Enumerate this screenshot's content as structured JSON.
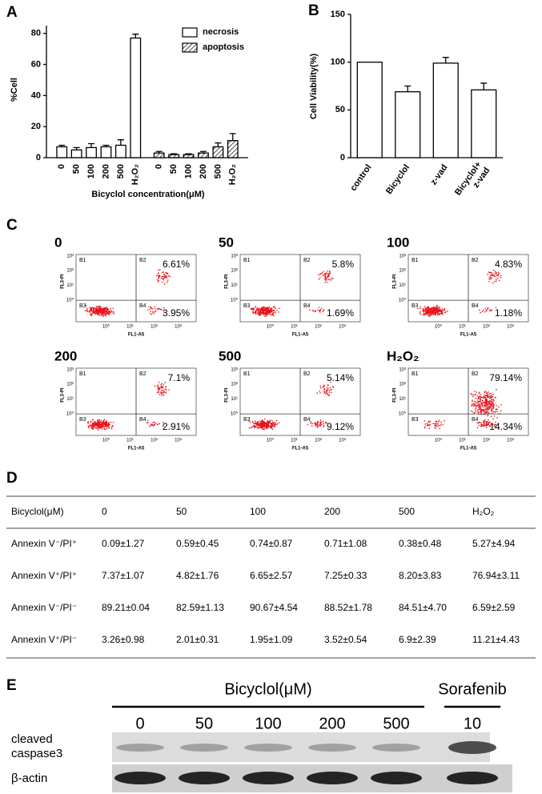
{
  "chart_data": [
    {
      "type": "bar",
      "label": "A",
      "xlabel": "Bicyclol concentration(μM)",
      "ylabel": "%Cell",
      "categories": [
        "0",
        "50",
        "100",
        "200",
        "500",
        "H₂O₂"
      ],
      "series": [
        {
          "name": "necrosis",
          "color": "#ffffff",
          "values": [
            7,
            5,
            6.5,
            7,
            8,
            77
          ],
          "errors": [
            1,
            1.5,
            2.5,
            1,
            3.5,
            2.5
          ]
        },
        {
          "name": "apoptosis",
          "color": "#ffffff",
          "pattern": "hatch",
          "values": [
            3,
            2,
            2,
            3,
            7,
            11
          ],
          "errors": [
            1,
            0.5,
            0.5,
            1,
            2.5,
            4.5
          ]
        }
      ],
      "ylim": [
        0,
        85
      ],
      "yticks": [
        0,
        20,
        40,
        60,
        80
      ]
    },
    {
      "type": "bar",
      "label": "B",
      "ylabel": "Cell Viability(%)",
      "categories": [
        "control",
        "Bicyclol",
        "z-vad",
        [
          "Bicyclol+",
          "z-vad"
        ]
      ],
      "values": [
        100,
        69,
        99,
        71
      ],
      "errors": [
        0,
        6,
        6,
        7
      ],
      "color": "#ffffff",
      "ylim": [
        0,
        150
      ],
      "yticks": [
        0,
        50,
        100,
        150
      ]
    }
  ],
  "flow": {
    "label": "C",
    "x_label": "FL1-A5",
    "y_label": "FL3-PI",
    "ticks": [
      "10⁰",
      "10¹",
      "10²",
      "10³"
    ],
    "quadrants": [
      "B1",
      "B2",
      "B3",
      "B4"
    ],
    "plots": [
      {
        "title": "0",
        "upper_right": "6.61%",
        "lower_right": "3.95%"
      },
      {
        "title": "50",
        "upper_right": "5.8%",
        "lower_right": "1.69%"
      },
      {
        "title": "100",
        "upper_right": "4.83%",
        "lower_right": "1.18%"
      },
      {
        "title": "200",
        "upper_right": "7.1%",
        "lower_right": "2.91%"
      },
      {
        "title": "500",
        "upper_right": "5.14%",
        "lower_right": "9.12%"
      },
      {
        "title": "H₂O₂",
        "upper_right": "79.14%",
        "lower_right": "14.34%"
      }
    ]
  },
  "table": {
    "label": "D",
    "header": [
      "Bicyclol(μM)",
      "0",
      "50",
      "100",
      "200",
      "500",
      "H₂O₂"
    ],
    "rows": [
      [
        "Annexin V⁻/PI⁺",
        "0.09±1.27",
        "0.59±0.45",
        "0.74±0.87",
        "0.71±1.08",
        "0.38±0.48",
        "5.27±4.94"
      ],
      [
        "Annexin V⁺/PI⁺",
        "7.37±1.07",
        "4.82±1.76",
        "6.65±2.57",
        "7.25±0.33",
        "8.20±3.83",
        "76.94±3.11"
      ],
      [
        "Annexin V⁻/PI⁻",
        "89.21±0.04",
        "82.59±1.13",
        "90.67±4.54",
        "88.52±1.78",
        "84.51±4.70",
        "6.59±2.59"
      ],
      [
        "Annexin V⁺/PI⁻",
        "3.26±0.98",
        "2.01±0.31",
        "1.95±1.09",
        "3.52±0.54",
        "6.9±2.39",
        "11.21±4.43"
      ]
    ]
  },
  "blot": {
    "label": "E",
    "groups": [
      {
        "name": "Bicyclol(μM)",
        "lanes": [
          "0",
          "50",
          "100",
          "200",
          "500"
        ]
      },
      {
        "name": "Sorafenib",
        "lanes": [
          "10"
        ]
      }
    ],
    "row_labels": [
      [
        "cleaved",
        "caspase3"
      ],
      [
        "β-actin"
      ]
    ]
  }
}
